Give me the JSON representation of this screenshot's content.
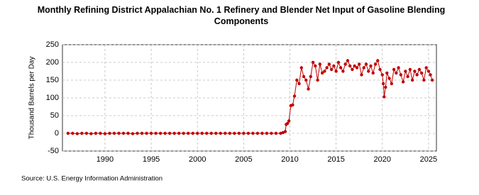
{
  "chart_data": {
    "type": "line",
    "title": "Monthly Refining District Appalachian No. 1 Refinery and Blender Net Input of Gasoline Blending Components",
    "ylabel": "Thousand Barrels per Day",
    "source": "Source: U.S. Energy Information Administration",
    "color": "#c00000",
    "grid": true,
    "xlim": [
      1985.4,
      2025.85
    ],
    "ylim": [
      -50,
      250
    ],
    "xticks": [
      1990,
      1995,
      2000,
      2005,
      2010,
      2015,
      2020,
      2025
    ],
    "yticks": [
      -50,
      0,
      50,
      100,
      150,
      200,
      250
    ],
    "x": [
      1986,
      1986.5,
      1987,
      1987.5,
      1988,
      1988.5,
      1989,
      1989.5,
      1990,
      1990.5,
      1991,
      1991.5,
      1992,
      1992.5,
      1993,
      1993.5,
      1994,
      1994.5,
      1995,
      1995.5,
      1996,
      1996.5,
      1997,
      1997.5,
      1998,
      1998.5,
      1999,
      1999.5,
      2000,
      2000.5,
      2001,
      2001.5,
      2002,
      2002.5,
      2003,
      2003.5,
      2004,
      2004.5,
      2005,
      2005.5,
      2006,
      2006.5,
      2007,
      2007.5,
      2008,
      2008.5,
      2009,
      2009.25,
      2009.5,
      2009.6,
      2009.75,
      2009.9,
      2010.1,
      2010.3,
      2010.5,
      2010.75,
      2011,
      2011.25,
      2011.5,
      2011.75,
      2012,
      2012.25,
      2012.5,
      2012.75,
      2013,
      2013.25,
      2013.5,
      2013.75,
      2014,
      2014.25,
      2014.5,
      2014.75,
      2015,
      2015.25,
      2015.5,
      2015.75,
      2016,
      2016.25,
      2016.5,
      2016.75,
      2017,
      2017.25,
      2017.5,
      2017.75,
      2018,
      2018.25,
      2018.5,
      2018.75,
      2019,
      2019.25,
      2019.5,
      2019.75,
      2020,
      2020.1,
      2020.2,
      2020.35,
      2020.5,
      2020.75,
      2021,
      2021.25,
      2021.5,
      2021.75,
      2022,
      2022.25,
      2022.5,
      2022.75,
      2023,
      2023.25,
      2023.5,
      2023.75,
      2024,
      2024.25,
      2024.5,
      2024.75,
      2025,
      2025.2,
      2025.4
    ],
    "values": [
      0,
      0,
      -1,
      0,
      0,
      -1,
      0,
      0,
      -1,
      0,
      0,
      0,
      0,
      0,
      -1,
      0,
      0,
      0,
      0,
      0,
      0,
      0,
      0,
      0,
      0,
      0,
      0,
      0,
      0,
      0,
      0,
      0,
      0,
      0,
      0,
      0,
      0,
      0,
      0,
      0,
      0,
      0,
      0,
      0,
      0,
      0,
      0,
      2,
      5,
      25,
      28,
      35,
      78,
      80,
      105,
      150,
      140,
      185,
      160,
      150,
      125,
      160,
      200,
      190,
      150,
      195,
      170,
      175,
      185,
      195,
      180,
      190,
      175,
      200,
      185,
      175,
      195,
      205,
      190,
      180,
      190,
      185,
      195,
      165,
      185,
      195,
      175,
      190,
      170,
      195,
      205,
      180,
      165,
      140,
      103,
      130,
      170,
      155,
      140,
      180,
      170,
      185,
      165,
      145,
      175,
      160,
      180,
      150,
      175,
      165,
      180,
      170,
      150,
      185,
      175,
      165,
      150
    ]
  }
}
